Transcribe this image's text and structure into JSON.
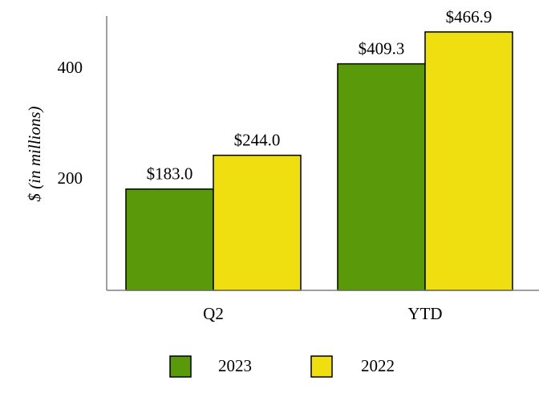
{
  "chart_data": {
    "type": "bar",
    "title": "",
    "xlabel": "",
    "ylabel": "$ (in millions)",
    "categories": [
      "Q2",
      "YTD"
    ],
    "series": [
      {
        "name": "2023",
        "color": "#5a990a",
        "values": [
          183.0,
          409.3
        ],
        "labels": [
          "$183.0",
          "$409.3"
        ]
      },
      {
        "name": "2022",
        "color": "#efdf10",
        "values": [
          244.0,
          466.9
        ],
        "labels": [
          "$244.0",
          "$466.9"
        ]
      }
    ],
    "yticks": [
      200,
      400
    ],
    "ytick_labels": [
      "200",
      "400"
    ],
    "ylim": [
      0,
      500
    ],
    "grid": false,
    "legend_position": "bottom"
  }
}
